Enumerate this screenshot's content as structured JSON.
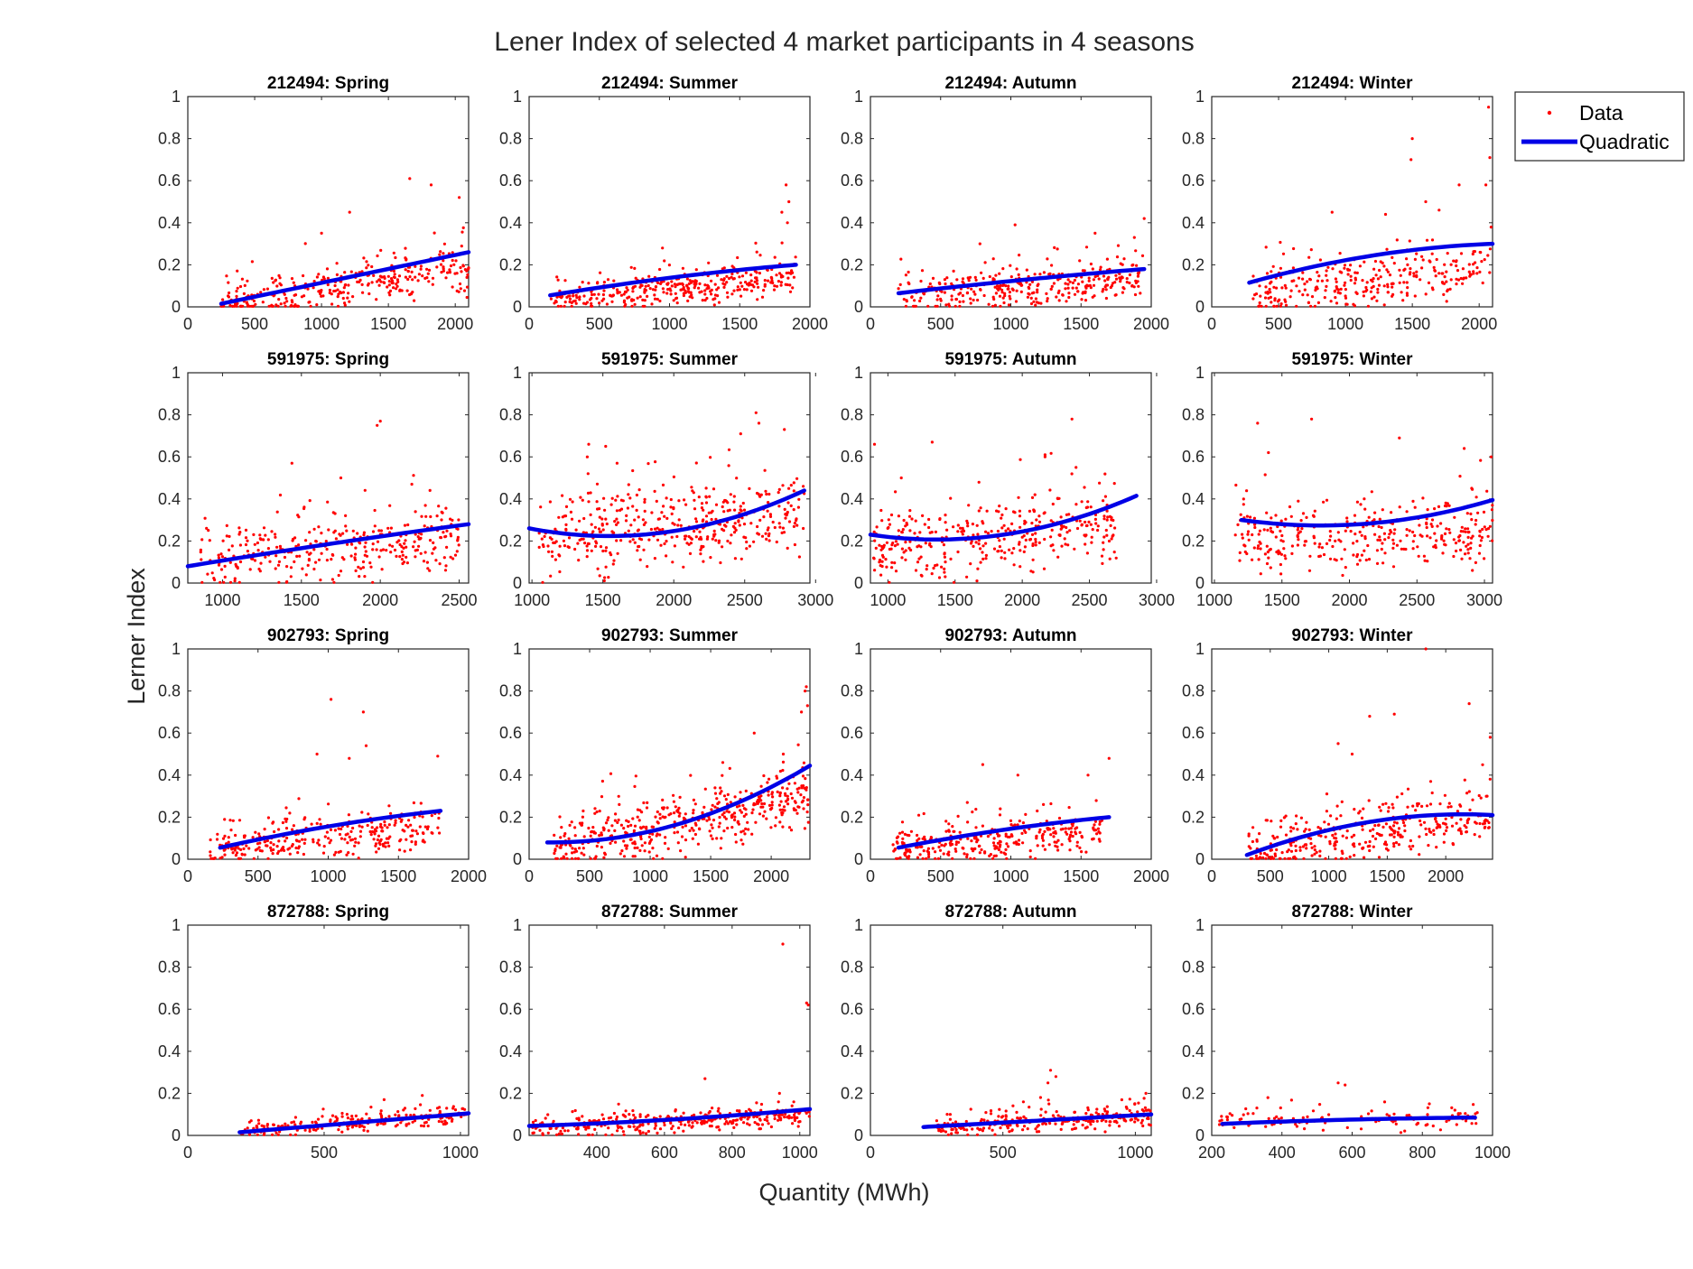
{
  "figure": {
    "title": "Lener Index of selected 4 market participants in 4 seasons",
    "xlabel": "Quantity (MWh)",
    "ylabel": "Lerner Index"
  },
  "legend": {
    "placement": "top-right",
    "items": [
      {
        "label": "Data",
        "marker": "dot",
        "color": "#ff0000"
      },
      {
        "label": "Quadratic",
        "marker": "line",
        "color": "#0000e6"
      }
    ]
  },
  "colors": {
    "data": "#ff0000",
    "fit": "#0000e6",
    "axes": "#262626"
  },
  "chart_data": [
    {
      "type": "scatter",
      "title": "212494: Spring",
      "xlim": [
        0,
        2100
      ],
      "ylim": [
        0,
        1
      ],
      "xticks": [
        0,
        500,
        1000,
        1500,
        2000
      ],
      "yticks": [
        0,
        0.2,
        0.4,
        0.6,
        0.8,
        1
      ],
      "fit": {
        "x": [
          250,
          2100
        ],
        "y": [
          0.015,
          0.26
        ],
        "curv": 0.0
      },
      "points": {
        "xmin": 250,
        "xmax": 2100,
        "base": [
          0.015,
          0.19
        ],
        "spread": 0.09,
        "n": 320,
        "outliers": [
          [
            1660,
            0.61
          ],
          [
            1820,
            0.58
          ],
          [
            2030,
            0.52
          ],
          [
            1210,
            0.45
          ],
          [
            1000,
            0.35
          ]
        ]
      }
    },
    {
      "type": "scatter",
      "title": "212494: Summer",
      "xlim": [
        0,
        2000
      ],
      "ylim": [
        0,
        1
      ],
      "xticks": [
        0,
        500,
        1000,
        1500,
        2000
      ],
      "yticks": [
        0,
        0.2,
        0.4,
        0.6,
        0.8,
        1
      ],
      "fit": {
        "x": [
          150,
          1900
        ],
        "y": [
          0.055,
          0.2
        ],
        "curv": -0.05
      },
      "points": {
        "xmin": 150,
        "xmax": 1900,
        "base": [
          0.03,
          0.14
        ],
        "spread": 0.06,
        "n": 360,
        "outliers": [
          [
            1830,
            0.58
          ],
          [
            1850,
            0.5
          ],
          [
            1800,
            0.45
          ],
          [
            950,
            0.28
          ],
          [
            1840,
            0.4
          ]
        ]
      }
    },
    {
      "type": "scatter",
      "title": "212494: Autumn",
      "xlim": [
        0,
        2000
      ],
      "ylim": [
        0,
        1
      ],
      "xticks": [
        0,
        500,
        1000,
        1500,
        2000
      ],
      "yticks": [
        0,
        0.2,
        0.4,
        0.6,
        0.8,
        1
      ],
      "fit": {
        "x": [
          200,
          1950
        ],
        "y": [
          0.065,
          0.18
        ],
        "curv": -0.02
      },
      "points": {
        "xmin": 200,
        "xmax": 1950,
        "base": [
          0.05,
          0.14
        ],
        "spread": 0.07,
        "n": 330,
        "outliers": [
          [
            1030,
            0.39
          ],
          [
            780,
            0.3
          ],
          [
            1950,
            0.42
          ],
          [
            1600,
            0.35
          ],
          [
            1880,
            0.33
          ]
        ]
      }
    },
    {
      "type": "scatter",
      "title": "212494: Winter",
      "xlim": [
        0,
        2100
      ],
      "ylim": [
        0,
        1
      ],
      "xticks": [
        0,
        500,
        1000,
        1500,
        2000
      ],
      "yticks": [
        0,
        0.2,
        0.4,
        0.6,
        0.8,
        1
      ],
      "fit": {
        "x": [
          280,
          2100
        ],
        "y": [
          0.115,
          0.3
        ],
        "curv": -0.14
      },
      "points": {
        "xmin": 300,
        "xmax": 2100,
        "base": [
          0.06,
          0.18
        ],
        "spread": 0.1,
        "n": 300,
        "outliers": [
          [
            1500,
            0.8
          ],
          [
            1490,
            0.7
          ],
          [
            2070,
            0.95
          ],
          [
            2080,
            0.71
          ],
          [
            2050,
            0.58
          ],
          [
            1600,
            0.5
          ],
          [
            1700,
            0.46
          ],
          [
            900,
            0.45
          ],
          [
            1300,
            0.44
          ],
          [
            1850,
            0.58
          ]
        ]
      }
    },
    {
      "type": "scatter",
      "title": "591975: Spring",
      "xlim": [
        780,
        2560
      ],
      "ylim": [
        0,
        1
      ],
      "xticks": [
        1000,
        1500,
        2000,
        2500
      ],
      "yticks": [
        0,
        0.2,
        0.4,
        0.6,
        0.8,
        1
      ],
      "fit": {
        "x": [
          780,
          2560
        ],
        "y": [
          0.08,
          0.28
        ],
        "curv": -0.02
      },
      "points": {
        "xmin": 850,
        "xmax": 2500,
        "base": [
          0.08,
          0.22
        ],
        "spread": 0.12,
        "n": 330,
        "outliers": [
          [
            2000,
            0.77
          ],
          [
            1980,
            0.75
          ],
          [
            1440,
            0.57
          ],
          [
            1750,
            0.5
          ],
          [
            2200,
            0.47
          ]
        ]
      }
    },
    {
      "type": "scatter",
      "title": "591975: Summer",
      "xlim": [
        980,
        2960
      ],
      "ylim": [
        0,
        1
      ],
      "xticks": [
        1000,
        1500,
        2000,
        2500,
        3000
      ],
      "yticks": [
        0,
        0.2,
        0.4,
        0.6,
        0.8,
        1
      ],
      "fit": {
        "x": [
          980,
          2920
        ],
        "y": [
          0.26,
          0.44
        ],
        "curv": 0.43
      },
      "points": {
        "xmin": 1050,
        "xmax": 2920,
        "base": [
          0.2,
          0.32
        ],
        "spread": 0.14,
        "n": 420,
        "outliers": [
          [
            2580,
            0.81
          ],
          [
            2600,
            0.76
          ],
          [
            2780,
            0.73
          ],
          [
            1400,
            0.66
          ],
          [
            1520,
            0.65
          ],
          [
            1390,
            0.6
          ],
          [
            1600,
            0.57
          ]
        ]
      }
    },
    {
      "type": "scatter",
      "title": "591975: Autumn",
      "xlim": [
        870,
        2960
      ],
      "ylim": [
        0,
        1
      ],
      "xticks": [
        1000,
        1500,
        2000,
        2500,
        3000
      ],
      "yticks": [
        0,
        0.2,
        0.4,
        0.6,
        0.8,
        1
      ],
      "fit": {
        "x": [
          870,
          2850
        ],
        "y": [
          0.23,
          0.415
        ],
        "curv": 0.37
      },
      "points": {
        "xmin": 880,
        "xmax": 2700,
        "base": [
          0.15,
          0.28
        ],
        "spread": 0.14,
        "n": 360,
        "outliers": [
          [
            2370,
            0.78
          ],
          [
            900,
            0.66
          ],
          [
            1330,
            0.67
          ],
          [
            2170,
            0.61
          ],
          [
            2400,
            0.55
          ],
          [
            1100,
            0.5
          ]
        ]
      }
    },
    {
      "type": "scatter",
      "title": "591975: Winter",
      "xlim": [
        980,
        3060
      ],
      "ylim": [
        0,
        1
      ],
      "xticks": [
        1000,
        1500,
        2000,
        2500,
        3000
      ],
      "yticks": [
        0,
        0.2,
        0.4,
        0.6,
        0.8,
        1
      ],
      "fit": {
        "x": [
          1200,
          3060
        ],
        "y": [
          0.3,
          0.395
        ],
        "curv": 0.26
      },
      "points": {
        "xmin": 1150,
        "xmax": 3060,
        "base": [
          0.2,
          0.25
        ],
        "spread": 0.13,
        "n": 330,
        "outliers": [
          [
            1320,
            0.76
          ],
          [
            1720,
            0.78
          ],
          [
            2370,
            0.69
          ],
          [
            2850,
            0.64
          ],
          [
            3050,
            0.6
          ],
          [
            1400,
            0.62
          ]
        ]
      }
    },
    {
      "type": "scatter",
      "title": "902793: Spring",
      "xlim": [
        0,
        2000
      ],
      "ylim": [
        0,
        1
      ],
      "xticks": [
        0,
        500,
        1000,
        1500,
        2000
      ],
      "yticks": [
        0,
        0.2,
        0.4,
        0.6,
        0.8,
        1
      ],
      "fit": {
        "x": [
          230,
          1800
        ],
        "y": [
          0.055,
          0.23
        ],
        "curv": -0.06
      },
      "points": {
        "xmin": 150,
        "xmax": 1800,
        "base": [
          0.05,
          0.15
        ],
        "spread": 0.08,
        "n": 300,
        "outliers": [
          [
            1020,
            0.76
          ],
          [
            1250,
            0.7
          ],
          [
            1270,
            0.54
          ],
          [
            920,
            0.5
          ],
          [
            1780,
            0.49
          ],
          [
            1150,
            0.48
          ]
        ]
      }
    },
    {
      "type": "scatter",
      "title": "902793: Summer",
      "xlim": [
        0,
        2320
      ],
      "ylim": [
        0,
        1
      ],
      "xticks": [
        0,
        500,
        1000,
        1500,
        2000
      ],
      "yticks": [
        0,
        0.2,
        0.4,
        0.6,
        0.8,
        1
      ],
      "fit": {
        "x": [
          150,
          2320
        ],
        "y": [
          0.08,
          0.445
        ],
        "curv": 0.38
      },
      "points": {
        "xmin": 200,
        "xmax": 2320,
        "base": [
          0.05,
          0.3
        ],
        "spread": 0.11,
        "n": 450,
        "outliers": [
          [
            2290,
            0.82
          ],
          [
            2280,
            0.8
          ],
          [
            2300,
            0.73
          ],
          [
            2250,
            0.7
          ],
          [
            1860,
            0.6
          ],
          [
            2100,
            0.5
          ],
          [
            1600,
            0.46
          ]
        ]
      }
    },
    {
      "type": "scatter",
      "title": "902793: Autumn",
      "xlim": [
        0,
        2000
      ],
      "ylim": [
        0,
        1
      ],
      "xticks": [
        0,
        500,
        1000,
        1500,
        2000
      ],
      "yticks": [
        0,
        0.2,
        0.4,
        0.6,
        0.8,
        1
      ],
      "fit": {
        "x": [
          200,
          1700
        ],
        "y": [
          0.055,
          0.2
        ],
        "curv": -0.05
      },
      "points": {
        "xmin": 150,
        "xmax": 1650,
        "base": [
          0.05,
          0.13
        ],
        "spread": 0.07,
        "n": 300,
        "outliers": [
          [
            800,
            0.45
          ],
          [
            1700,
            0.48
          ],
          [
            1550,
            0.4
          ],
          [
            1050,
            0.4
          ],
          [
            690,
            0.27
          ]
        ]
      }
    },
    {
      "type": "scatter",
      "title": "902793: Winter",
      "xlim": [
        0,
        2400
      ],
      "ylim": [
        0,
        1
      ],
      "xticks": [
        0,
        500,
        1000,
        1500,
        2000
      ],
      "yticks": [
        0,
        0.2,
        0.4,
        0.6,
        0.8,
        1
      ],
      "fit": {
        "x": [
          300,
          2400
        ],
        "y": [
          0.02,
          0.21
        ],
        "curv": -0.25
      },
      "points": {
        "xmin": 300,
        "xmax": 2380,
        "base": [
          0.05,
          0.18
        ],
        "spread": 0.1,
        "n": 350,
        "outliers": [
          [
            1830,
            1.0
          ],
          [
            2200,
            0.74
          ],
          [
            1560,
            0.69
          ],
          [
            1350,
            0.68
          ],
          [
            1080,
            0.55
          ],
          [
            2380,
            0.58
          ],
          [
            1200,
            0.5
          ]
        ]
      }
    },
    {
      "type": "scatter",
      "title": "872788: Spring",
      "xlim": [
        0,
        1030
      ],
      "ylim": [
        0,
        1
      ],
      "xticks": [
        0,
        500,
        1000
      ],
      "yticks": [
        0,
        0.2,
        0.4,
        0.6,
        0.8,
        1
      ],
      "fit": {
        "x": [
          190,
          1030
        ],
        "y": [
          0.015,
          0.105
        ],
        "curv": 0.0
      },
      "points": {
        "xmin": 180,
        "xmax": 1020,
        "base": [
          0.02,
          0.1
        ],
        "spread": 0.035,
        "n": 220,
        "outliers": [
          [
            860,
            0.19
          ],
          [
            720,
            0.17
          ]
        ]
      }
    },
    {
      "type": "scatter",
      "title": "872788: Summer",
      "xlim": [
        200,
        1030
      ],
      "ylim": [
        0,
        1
      ],
      "xticks": [
        400,
        600,
        800,
        1000
      ],
      "yticks": [
        0,
        0.2,
        0.4,
        0.6,
        0.8,
        1
      ],
      "fit": {
        "x": [
          200,
          1030
        ],
        "y": [
          0.045,
          0.125
        ],
        "curv": 0.04
      },
      "points": {
        "xmin": 210,
        "xmax": 1030,
        "base": [
          0.03,
          0.1
        ],
        "spread": 0.04,
        "n": 330,
        "outliers": [
          [
            950,
            0.91
          ],
          [
            1020,
            0.63
          ],
          [
            1025,
            0.62
          ],
          [
            720,
            0.27
          ],
          [
            940,
            0.2
          ]
        ]
      }
    },
    {
      "type": "scatter",
      "title": "872788: Autumn",
      "xlim": [
        0,
        1060
      ],
      "ylim": [
        0,
        1
      ],
      "xticks": [
        0,
        500,
        1000
      ],
      "yticks": [
        0,
        0.2,
        0.4,
        0.6,
        0.8,
        1
      ],
      "fit": {
        "x": [
          200,
          1060
        ],
        "y": [
          0.04,
          0.1
        ],
        "curv": 0.0
      },
      "points": {
        "xmin": 250,
        "xmax": 1060,
        "base": [
          0.04,
          0.09
        ],
        "spread": 0.04,
        "n": 260,
        "outliers": [
          [
            680,
            0.31
          ],
          [
            700,
            0.28
          ],
          [
            670,
            0.25
          ],
          [
            1040,
            0.2
          ]
        ]
      }
    },
    {
      "type": "scatter",
      "title": "872788: Winter",
      "xlim": [
        200,
        1000
      ],
      "ylim": [
        0,
        1
      ],
      "xticks": [
        200,
        400,
        600,
        800,
        1000
      ],
      "yticks": [
        0,
        0.2,
        0.4,
        0.6,
        0.8,
        1
      ],
      "fit": {
        "x": [
          230,
          950
        ],
        "y": [
          0.055,
          0.085
        ],
        "curv": -0.02
      },
      "points": {
        "xmin": 220,
        "xmax": 960,
        "base": [
          0.06,
          0.08
        ],
        "spread": 0.04,
        "n": 110,
        "outliers": [
          [
            560,
            0.25
          ],
          [
            580,
            0.24
          ],
          [
            360,
            0.18
          ],
          [
            820,
            0.15
          ]
        ]
      }
    }
  ]
}
